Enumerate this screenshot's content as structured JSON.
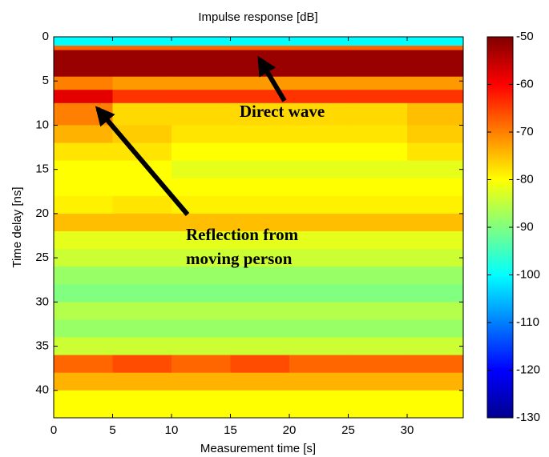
{
  "chart_data": {
    "type": "heatmap",
    "title": "Impulse response [dB]",
    "x_label": "Measurement time [s]",
    "y_label": "Time delay [ns]",
    "xlim": [
      0,
      34.76
    ],
    "xticks": [
      0,
      5,
      10,
      15,
      20,
      25,
      30
    ],
    "ylim": [
      0,
      43.1
    ],
    "yticks": [
      0,
      5,
      10,
      15,
      20,
      25,
      30,
      35,
      40
    ],
    "y_reversed": true,
    "clim": [
      -130,
      -50
    ],
    "cticks": [
      -50,
      -60,
      -70,
      -80,
      -90,
      -100,
      -110,
      -120,
      -130
    ],
    "colormap": "jet",
    "xbins": [
      0,
      5,
      10,
      15,
      20,
      25,
      30,
      34.76
    ],
    "ybins": [
      0,
      1,
      1.5,
      4.5,
      6,
      7.5,
      10,
      12,
      14,
      16,
      18,
      20,
      22,
      24,
      26,
      28,
      30,
      32,
      34,
      36,
      38,
      40,
      43.1
    ],
    "z": [
      [
        -100,
        -100,
        -100,
        -100,
        -100,
        -100,
        -100
      ],
      [
        -68,
        -68,
        -68,
        -68,
        -68,
        -68,
        -68
      ],
      [
        -52,
        -52,
        -52,
        -52,
        -52,
        -52,
        -52
      ],
      [
        -70,
        -72,
        -72,
        -72,
        -72,
        -72,
        -72
      ],
      [
        -58,
        -64,
        -64,
        -64,
        -64,
        -64,
        -64
      ],
      [
        -70,
        -77,
        -77,
        -77,
        -77,
        -77,
        -75
      ],
      [
        -74,
        -76,
        -78,
        -78,
        -78,
        -78,
        -76
      ],
      [
        -78,
        -78,
        -80,
        -80,
        -80,
        -80,
        -78
      ],
      [
        -80,
        -80,
        -82,
        -82,
        -82,
        -82,
        -82
      ],
      [
        -80,
        -80,
        -80,
        -80,
        -80,
        -80,
        -80
      ],
      [
        -79,
        -78,
        -79,
        -79,
        -79,
        -79,
        -79
      ],
      [
        -75,
        -75,
        -75,
        -75,
        -75,
        -75,
        -75
      ],
      [
        -82,
        -82,
        -82,
        -82,
        -82,
        -82,
        -82
      ],
      [
        -84,
        -84,
        -84,
        -84,
        -84,
        -84,
        -84
      ],
      [
        -88,
        -88,
        -88,
        -88,
        -88,
        -88,
        -88
      ],
      [
        -90,
        -90,
        -90,
        -90,
        -90,
        -90,
        -90
      ],
      [
        -86,
        -86,
        -86,
        -86,
        -86,
        -86,
        -86
      ],
      [
        -88,
        -88,
        -88,
        -88,
        -88,
        -88,
        -88
      ],
      [
        -84,
        -84,
        -84,
        -84,
        -84,
        -84,
        -84
      ],
      [
        -68,
        -66,
        -68,
        -66,
        -68,
        -68,
        -68
      ],
      [
        -74,
        -74,
        -74,
        -74,
        -74,
        -74,
        -74
      ],
      [
        -80,
        -80,
        -80,
        -80,
        -80,
        -80,
        -80
      ]
    ],
    "annotations": [
      {
        "text": [
          "Direct wave"
        ]
      },
      {
        "text": [
          "Reflection from",
          "moving person"
        ]
      }
    ]
  }
}
